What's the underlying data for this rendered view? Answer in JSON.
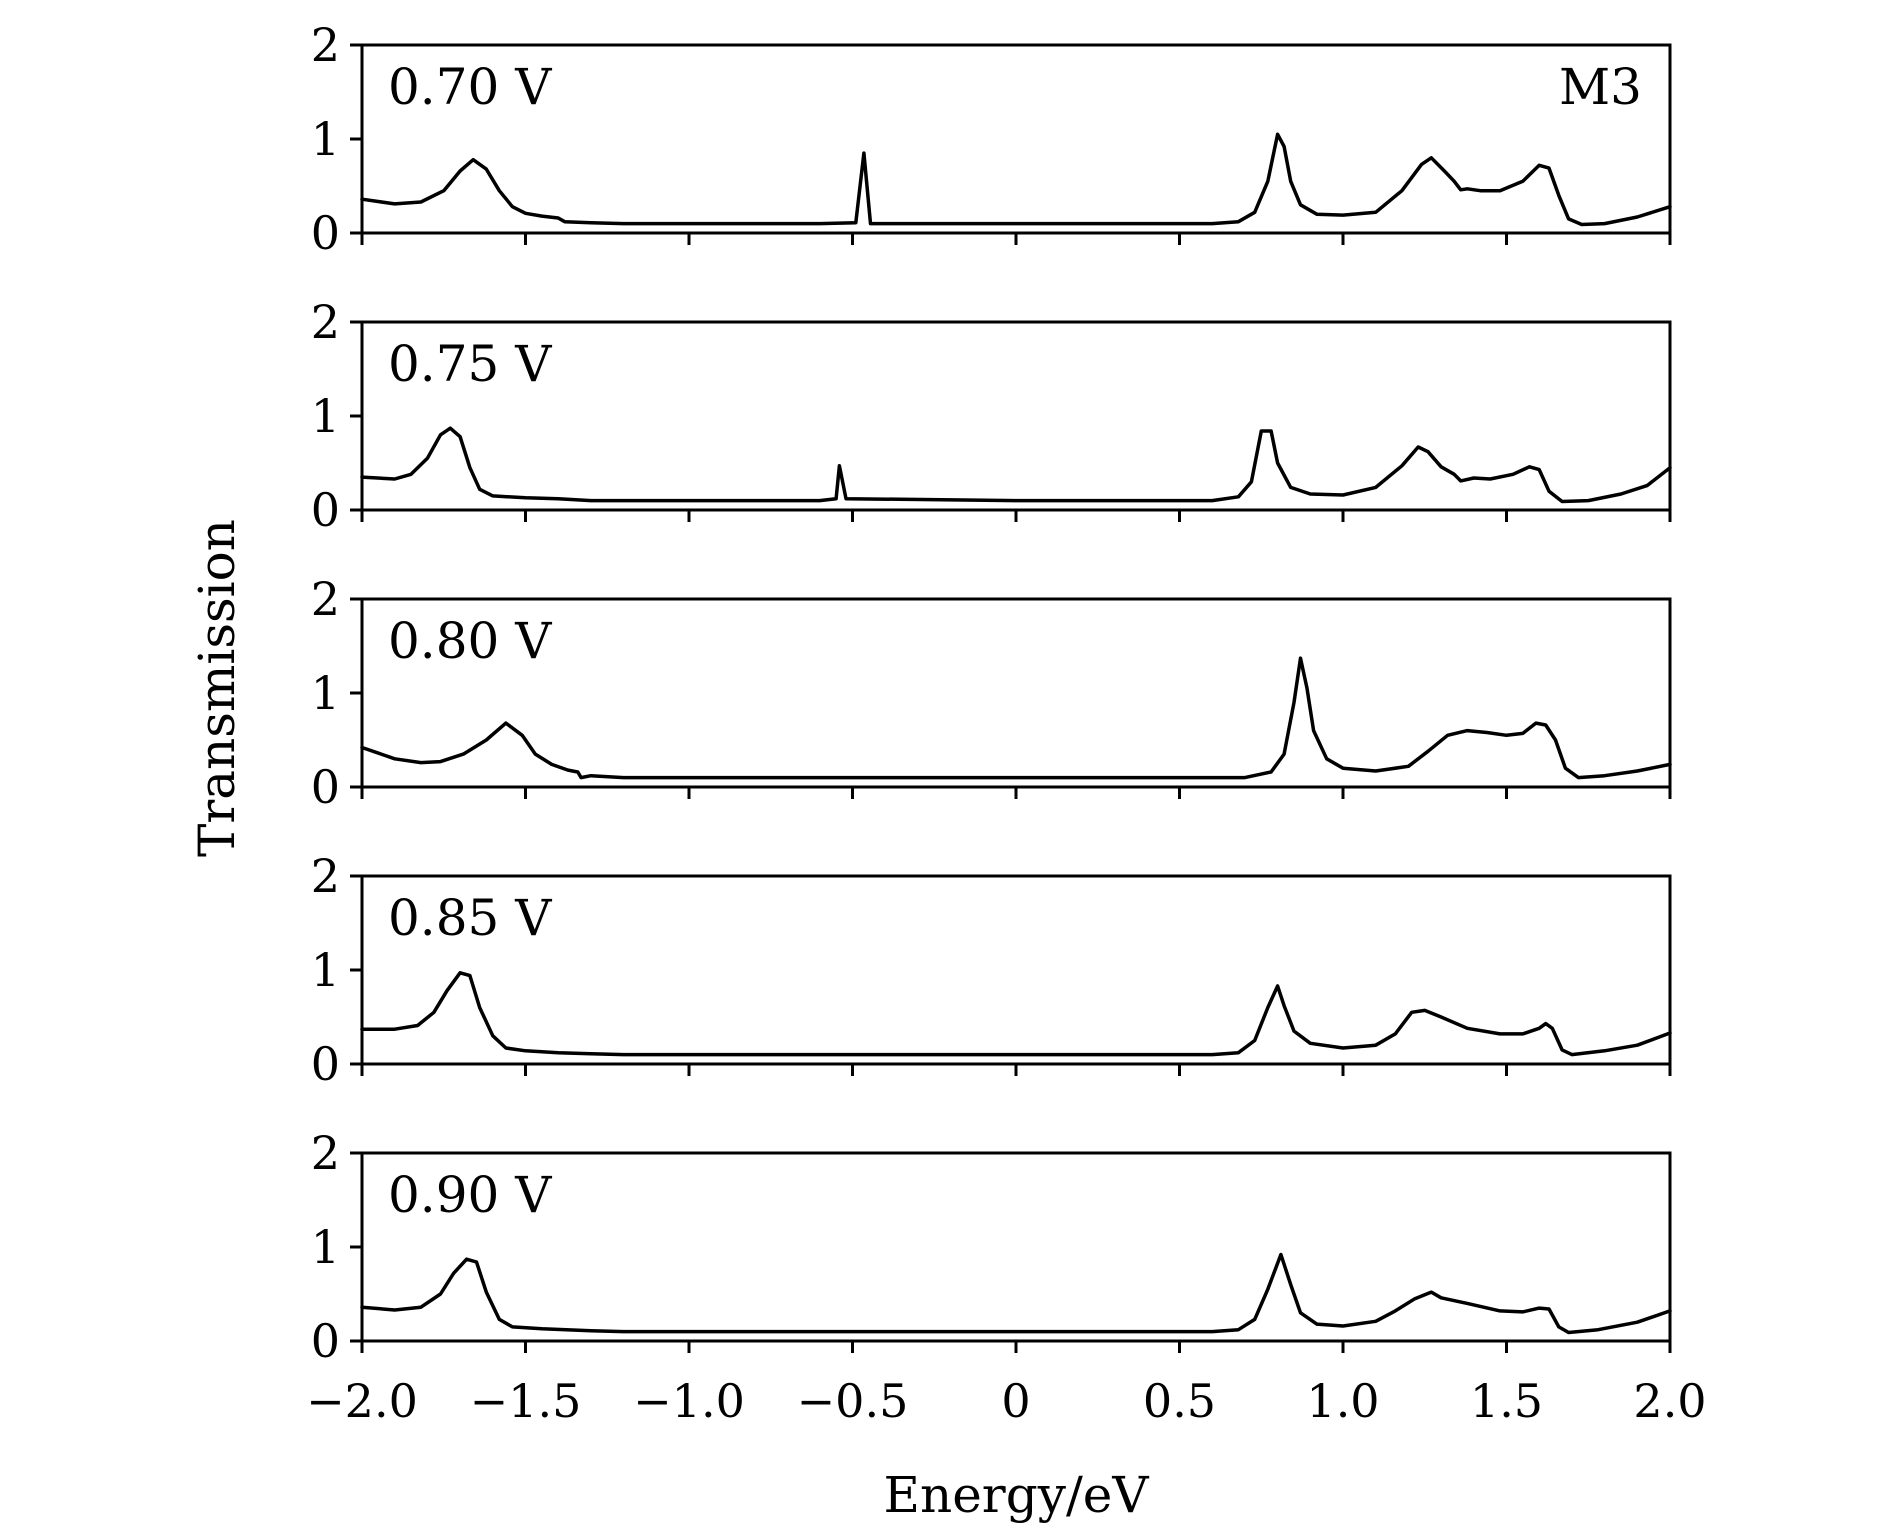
{
  "figure": {
    "xlabel": "Energy/eV",
    "ylabel": "Transmission",
    "corner_label": "M3",
    "line_color": "#000000"
  },
  "chart_data": {
    "type": "line",
    "xlim": [
      -2.0,
      2.0
    ],
    "ylim": [
      0,
      2
    ],
    "x_ticks": [
      -2.0,
      -1.5,
      -1.0,
      -0.5,
      0,
      0.5,
      1.0,
      1.5,
      2.0
    ],
    "x_tick_labels": [
      "−2.0",
      "−1.5",
      "−1.0",
      "−0.5",
      "0",
      "0.5",
      "1.0",
      "1.5",
      "2.0"
    ],
    "y_ticks": [
      0,
      1,
      2
    ],
    "y_tick_labels": [
      "0",
      "1",
      "2"
    ],
    "grid": false,
    "xlabel": "Energy/eV",
    "ylabel": "Transmission",
    "series": [
      {
        "name": "0.70 V",
        "points": [
          [
            -2.0,
            0.36
          ],
          [
            -1.9,
            0.31
          ],
          [
            -1.82,
            0.33
          ],
          [
            -1.75,
            0.45
          ],
          [
            -1.7,
            0.66
          ],
          [
            -1.66,
            0.78
          ],
          [
            -1.62,
            0.68
          ],
          [
            -1.58,
            0.45
          ],
          [
            -1.54,
            0.28
          ],
          [
            -1.5,
            0.21
          ],
          [
            -1.45,
            0.18
          ],
          [
            -1.4,
            0.16
          ],
          [
            -1.38,
            0.12
          ],
          [
            -1.3,
            0.11
          ],
          [
            -1.2,
            0.1
          ],
          [
            -1.0,
            0.1
          ],
          [
            -0.6,
            0.1
          ],
          [
            -0.49,
            0.11
          ],
          [
            -0.465,
            0.85
          ],
          [
            -0.445,
            0.1
          ],
          [
            0.0,
            0.1
          ],
          [
            0.6,
            0.1
          ],
          [
            0.68,
            0.12
          ],
          [
            0.73,
            0.22
          ],
          [
            0.77,
            0.55
          ],
          [
            0.8,
            1.05
          ],
          [
            0.82,
            0.92
          ],
          [
            0.84,
            0.55
          ],
          [
            0.87,
            0.3
          ],
          [
            0.92,
            0.2
          ],
          [
            1.0,
            0.19
          ],
          [
            1.1,
            0.22
          ],
          [
            1.18,
            0.45
          ],
          [
            1.24,
            0.73
          ],
          [
            1.27,
            0.8
          ],
          [
            1.31,
            0.66
          ],
          [
            1.34,
            0.55
          ],
          [
            1.36,
            0.46
          ],
          [
            1.38,
            0.47
          ],
          [
            1.42,
            0.45
          ],
          [
            1.48,
            0.45
          ],
          [
            1.55,
            0.55
          ],
          [
            1.6,
            0.72
          ],
          [
            1.63,
            0.69
          ],
          [
            1.66,
            0.4
          ],
          [
            1.69,
            0.15
          ],
          [
            1.73,
            0.09
          ],
          [
            1.8,
            0.1
          ],
          [
            1.9,
            0.17
          ],
          [
            2.0,
            0.28
          ]
        ]
      },
      {
        "name": "0.75 V",
        "points": [
          [
            -2.0,
            0.35
          ],
          [
            -1.9,
            0.33
          ],
          [
            -1.85,
            0.38
          ],
          [
            -1.8,
            0.55
          ],
          [
            -1.76,
            0.8
          ],
          [
            -1.73,
            0.87
          ],
          [
            -1.7,
            0.78
          ],
          [
            -1.67,
            0.45
          ],
          [
            -1.64,
            0.22
          ],
          [
            -1.6,
            0.15
          ],
          [
            -1.5,
            0.13
          ],
          [
            -1.4,
            0.12
          ],
          [
            -1.3,
            0.1
          ],
          [
            -1.0,
            0.1
          ],
          [
            -0.6,
            0.1
          ],
          [
            -0.55,
            0.12
          ],
          [
            -0.54,
            0.47
          ],
          [
            -0.52,
            0.12
          ],
          [
            0.0,
            0.1
          ],
          [
            0.6,
            0.1
          ],
          [
            0.68,
            0.14
          ],
          [
            0.72,
            0.3
          ],
          [
            0.75,
            0.84
          ],
          [
            0.78,
            0.84
          ],
          [
            0.8,
            0.5
          ],
          [
            0.84,
            0.24
          ],
          [
            0.9,
            0.17
          ],
          [
            1.0,
            0.16
          ],
          [
            1.1,
            0.24
          ],
          [
            1.18,
            0.47
          ],
          [
            1.23,
            0.67
          ],
          [
            1.26,
            0.62
          ],
          [
            1.3,
            0.46
          ],
          [
            1.34,
            0.38
          ],
          [
            1.36,
            0.31
          ],
          [
            1.4,
            0.34
          ],
          [
            1.45,
            0.33
          ],
          [
            1.52,
            0.38
          ],
          [
            1.57,
            0.46
          ],
          [
            1.6,
            0.43
          ],
          [
            1.63,
            0.2
          ],
          [
            1.67,
            0.09
          ],
          [
            1.75,
            0.1
          ],
          [
            1.85,
            0.17
          ],
          [
            1.93,
            0.26
          ],
          [
            2.0,
            0.45
          ]
        ]
      },
      {
        "name": "0.80 V",
        "points": [
          [
            -2.0,
            0.42
          ],
          [
            -1.9,
            0.3
          ],
          [
            -1.82,
            0.26
          ],
          [
            -1.76,
            0.27
          ],
          [
            -1.69,
            0.35
          ],
          [
            -1.62,
            0.5
          ],
          [
            -1.56,
            0.68
          ],
          [
            -1.51,
            0.55
          ],
          [
            -1.47,
            0.35
          ],
          [
            -1.42,
            0.24
          ],
          [
            -1.37,
            0.18
          ],
          [
            -1.34,
            0.16
          ],
          [
            -1.33,
            0.1
          ],
          [
            -1.3,
            0.12
          ],
          [
            -1.2,
            0.1
          ],
          [
            -1.0,
            0.1
          ],
          [
            0.0,
            0.1
          ],
          [
            0.7,
            0.1
          ],
          [
            0.78,
            0.16
          ],
          [
            0.82,
            0.35
          ],
          [
            0.85,
            0.9
          ],
          [
            0.87,
            1.37
          ],
          [
            0.89,
            1.05
          ],
          [
            0.91,
            0.6
          ],
          [
            0.95,
            0.3
          ],
          [
            1.0,
            0.2
          ],
          [
            1.1,
            0.17
          ],
          [
            1.2,
            0.22
          ],
          [
            1.26,
            0.38
          ],
          [
            1.32,
            0.55
          ],
          [
            1.38,
            0.6
          ],
          [
            1.44,
            0.58
          ],
          [
            1.5,
            0.55
          ],
          [
            1.55,
            0.57
          ],
          [
            1.59,
            0.68
          ],
          [
            1.62,
            0.66
          ],
          [
            1.65,
            0.5
          ],
          [
            1.68,
            0.2
          ],
          [
            1.72,
            0.1
          ],
          [
            1.8,
            0.12
          ],
          [
            1.9,
            0.17
          ],
          [
            2.0,
            0.24
          ]
        ]
      },
      {
        "name": "0.85 V",
        "points": [
          [
            -2.0,
            0.37
          ],
          [
            -1.9,
            0.37
          ],
          [
            -1.83,
            0.41
          ],
          [
            -1.78,
            0.55
          ],
          [
            -1.74,
            0.78
          ],
          [
            -1.7,
            0.97
          ],
          [
            -1.67,
            0.94
          ],
          [
            -1.64,
            0.6
          ],
          [
            -1.6,
            0.3
          ],
          [
            -1.56,
            0.17
          ],
          [
            -1.5,
            0.14
          ],
          [
            -1.4,
            0.12
          ],
          [
            -1.3,
            0.11
          ],
          [
            -1.2,
            0.1
          ],
          [
            -1.0,
            0.1
          ],
          [
            0.0,
            0.1
          ],
          [
            0.6,
            0.1
          ],
          [
            0.68,
            0.12
          ],
          [
            0.73,
            0.25
          ],
          [
            0.77,
            0.6
          ],
          [
            0.8,
            0.83
          ],
          [
            0.82,
            0.62
          ],
          [
            0.85,
            0.35
          ],
          [
            0.9,
            0.22
          ],
          [
            1.0,
            0.17
          ],
          [
            1.1,
            0.2
          ],
          [
            1.16,
            0.32
          ],
          [
            1.21,
            0.55
          ],
          [
            1.25,
            0.57
          ],
          [
            1.3,
            0.5
          ],
          [
            1.38,
            0.38
          ],
          [
            1.48,
            0.32
          ],
          [
            1.55,
            0.32
          ],
          [
            1.6,
            0.38
          ],
          [
            1.62,
            0.43
          ],
          [
            1.64,
            0.38
          ],
          [
            1.67,
            0.15
          ],
          [
            1.7,
            0.1
          ],
          [
            1.8,
            0.14
          ],
          [
            1.9,
            0.2
          ],
          [
            2.0,
            0.33
          ]
        ]
      },
      {
        "name": "0.90 V",
        "points": [
          [
            -2.0,
            0.36
          ],
          [
            -1.9,
            0.33
          ],
          [
            -1.82,
            0.36
          ],
          [
            -1.76,
            0.5
          ],
          [
            -1.72,
            0.72
          ],
          [
            -1.68,
            0.87
          ],
          [
            -1.65,
            0.84
          ],
          [
            -1.62,
            0.52
          ],
          [
            -1.58,
            0.23
          ],
          [
            -1.54,
            0.15
          ],
          [
            -1.45,
            0.13
          ],
          [
            -1.3,
            0.11
          ],
          [
            -1.2,
            0.1
          ],
          [
            -1.0,
            0.1
          ],
          [
            0.0,
            0.1
          ],
          [
            0.6,
            0.1
          ],
          [
            0.68,
            0.12
          ],
          [
            0.73,
            0.23
          ],
          [
            0.77,
            0.55
          ],
          [
            0.81,
            0.92
          ],
          [
            0.84,
            0.6
          ],
          [
            0.87,
            0.3
          ],
          [
            0.92,
            0.18
          ],
          [
            1.0,
            0.16
          ],
          [
            1.1,
            0.21
          ],
          [
            1.16,
            0.32
          ],
          [
            1.22,
            0.45
          ],
          [
            1.27,
            0.52
          ],
          [
            1.3,
            0.46
          ],
          [
            1.38,
            0.4
          ],
          [
            1.48,
            0.32
          ],
          [
            1.55,
            0.31
          ],
          [
            1.6,
            0.35
          ],
          [
            1.63,
            0.34
          ],
          [
            1.66,
            0.15
          ],
          [
            1.69,
            0.09
          ],
          [
            1.78,
            0.12
          ],
          [
            1.9,
            0.2
          ],
          [
            2.0,
            0.32
          ]
        ]
      }
    ]
  }
}
